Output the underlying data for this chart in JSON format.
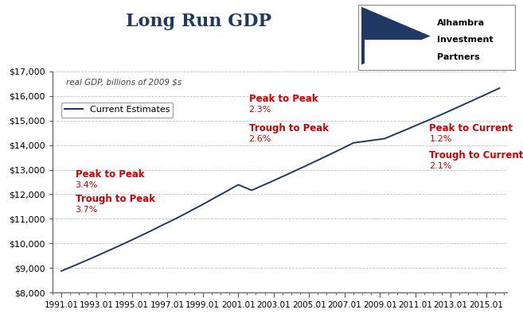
{
  "title": "Long Run GDP",
  "subtitle": "real GDP, billions of 2009 $s",
  "line_color": "#1F3864",
  "background_color": "#FFFFFF",
  "plot_bg_color": "#FFFFFF",
  "grid_color": "#BBBBBB",
  "ylim": [
    8000,
    17000
  ],
  "yticks": [
    8000,
    9000,
    10000,
    11000,
    12000,
    13000,
    14000,
    15000,
    16000,
    17000
  ],
  "ytick_labels": [
    "$8,000",
    "$9,000",
    "$10,000",
    "$11,000",
    "$12,000",
    "$13,000",
    "$14,000",
    "$15,000",
    "$16,000",
    "$17,000"
  ],
  "xtick_years": [
    1991,
    1993,
    1995,
    1997,
    1999,
    2001,
    2003,
    2005,
    2007,
    2009,
    2011,
    2013,
    2015
  ],
  "xlim": [
    1990.5,
    2016.2
  ],
  "ann_color": "#CC0000",
  "ann_left": {
    "p2p_label": "Peak to Peak",
    "p2p_pct": "3.4%",
    "t2p_label": "Trough to Peak",
    "t2p_pct": "3.7%",
    "x": 1991.8,
    "y_p2p_lbl": 12700,
    "y_p2p_pct": 12280,
    "y_t2p_lbl": 11700,
    "y_t2p_pct": 11280
  },
  "ann_mid": {
    "p2p_label": "Peak to Peak",
    "p2p_pct": "2.3%",
    "t2p_label": "Trough to Peak",
    "t2p_pct": "2.6%",
    "x": 2001.6,
    "y_p2p_lbl": 15780,
    "y_p2p_pct": 15350,
    "y_t2p_lbl": 14580,
    "y_t2p_pct": 14160
  },
  "ann_right": {
    "p2c_label": "Peak to Current",
    "p2c_pct": "1.2%",
    "t2c_label": "Trough to Current",
    "t2c_pct": "2.1%",
    "x": 2011.8,
    "y_p2c_lbl": 14580,
    "y_p2c_pct": 14160,
    "y_t2c_lbl": 13480,
    "y_t2c_pct": 13060
  },
  "legend_label": "Current Estimates"
}
